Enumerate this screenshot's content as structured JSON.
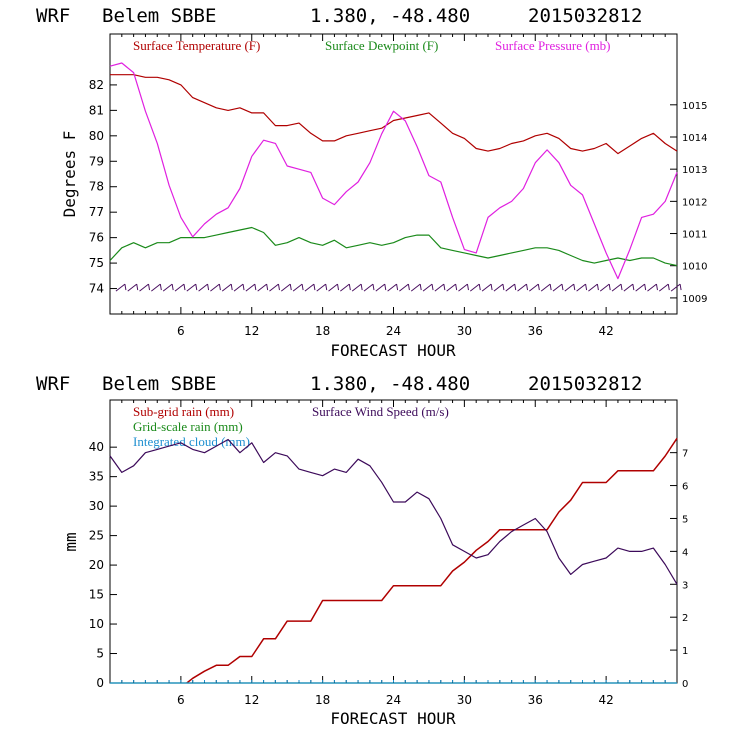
{
  "chart_data": [
    {
      "type": "line",
      "header": {
        "model": "WRF",
        "station": "Belem SBBE",
        "coords": "1.380, -48.480",
        "init": "2015032812"
      },
      "xlabel": "FORECAST HOUR",
      "ylabel": "Degrees F",
      "xlim": [
        0,
        48
      ],
      "ylim": [
        73,
        84
      ],
      "ylim_right": [
        1008.5,
        1017.2
      ],
      "x_ticks": [
        6,
        12,
        18,
        24,
        30,
        36,
        42
      ],
      "x_tick_labels": [
        "6",
        "12",
        "18",
        "24",
        "30",
        "36",
        "42"
      ],
      "y_ticks": [
        74,
        75,
        76,
        77,
        78,
        79,
        80,
        81,
        82
      ],
      "y_tick_labels": [
        "74",
        "75",
        "76",
        "77",
        "78",
        "79",
        "80",
        "81",
        "82"
      ],
      "y_right_ticks": [
        1009,
        1010,
        1011,
        1012,
        1013,
        1014,
        1015
      ],
      "y_right_tick_labels": [
        "1009",
        "1010",
        "1011",
        "1012",
        "1013",
        "1014",
        "1015"
      ],
      "series": [
        {
          "name": "Surface Temperature (F)",
          "color": "#b00000",
          "axis": "left",
          "x": [
            0,
            1,
            2,
            3,
            4,
            5,
            6,
            7,
            8,
            9,
            10,
            11,
            12,
            13,
            14,
            15,
            16,
            17,
            18,
            19,
            20,
            21,
            22,
            23,
            24,
            25,
            26,
            27,
            28,
            29,
            30,
            31,
            32,
            33,
            34,
            35,
            36,
            37,
            38,
            39,
            40,
            41,
            42,
            43,
            44,
            45,
            46,
            47,
            48
          ],
          "values": [
            82.4,
            82.4,
            82.4,
            82.3,
            82.3,
            82.2,
            82.0,
            81.5,
            81.3,
            81.1,
            81.0,
            81.1,
            80.9,
            80.9,
            80.4,
            80.4,
            80.5,
            80.1,
            79.8,
            79.8,
            80.0,
            80.1,
            80.2,
            80.3,
            80.6,
            80.7,
            80.8,
            80.9,
            80.5,
            80.1,
            79.9,
            79.5,
            79.4,
            79.5,
            79.7,
            79.8,
            80.0,
            80.1,
            79.9,
            79.5,
            79.4,
            79.5,
            79.7,
            79.3,
            79.6,
            79.9,
            80.1,
            79.7,
            79.4
          ]
        },
        {
          "name": "Surface Dewpoint (F)",
          "color": "#1a8a1a",
          "axis": "left",
          "x": [
            0,
            1,
            2,
            3,
            4,
            5,
            6,
            7,
            8,
            9,
            10,
            11,
            12,
            13,
            14,
            15,
            16,
            17,
            18,
            19,
            20,
            21,
            22,
            23,
            24,
            25,
            26,
            27,
            28,
            29,
            30,
            31,
            32,
            33,
            34,
            35,
            36,
            37,
            38,
            39,
            40,
            41,
            42,
            43,
            44,
            45,
            46,
            47,
            48
          ],
          "values": [
            75.1,
            75.6,
            75.8,
            75.6,
            75.8,
            75.8,
            76.0,
            76.0,
            76.0,
            76.1,
            76.2,
            76.3,
            76.4,
            76.2,
            75.7,
            75.8,
            76.0,
            75.8,
            75.7,
            75.9,
            75.6,
            75.7,
            75.8,
            75.7,
            75.8,
            76.0,
            76.1,
            76.1,
            75.6,
            75.5,
            75.4,
            75.3,
            75.2,
            75.3,
            75.4,
            75.5,
            75.6,
            75.6,
            75.5,
            75.3,
            75.1,
            75.0,
            75.1,
            75.2,
            75.1,
            75.2,
            75.2,
            75.0,
            74.9
          ]
        },
        {
          "name": "Surface Pressure (mb)",
          "color": "#e020e0",
          "axis": "right",
          "x": [
            0,
            1,
            2,
            3,
            4,
            5,
            6,
            7,
            8,
            9,
            10,
            11,
            12,
            13,
            14,
            15,
            16,
            17,
            18,
            19,
            20,
            21,
            22,
            23,
            24,
            25,
            26,
            27,
            28,
            29,
            30,
            31,
            32,
            33,
            34,
            35,
            36,
            37,
            38,
            39,
            40,
            41,
            42,
            43,
            44,
            45,
            46,
            47,
            48
          ],
          "values": [
            1016.2,
            1016.3,
            1016.0,
            1014.8,
            1013.8,
            1012.5,
            1011.5,
            1010.9,
            1011.3,
            1011.6,
            1011.8,
            1012.4,
            1013.4,
            1013.9,
            1013.8,
            1013.1,
            1013.0,
            1012.9,
            1012.1,
            1011.9,
            1012.3,
            1012.6,
            1013.2,
            1014.1,
            1014.8,
            1014.5,
            1013.7,
            1012.8,
            1012.6,
            1011.5,
            1010.5,
            1010.4,
            1011.5,
            1011.8,
            1012.0,
            1012.4,
            1013.2,
            1013.6,
            1013.2,
            1012.5,
            1012.2,
            1011.3,
            1010.4,
            1009.6,
            1010.5,
            1011.5,
            1011.6,
            1012.0,
            1012.9
          ]
        },
        {
          "name": "Wind Barbs",
          "color": "#4a1060",
          "axis": "left",
          "baseline": 73.9,
          "x": [
            0.5,
            1.5,
            2.5,
            3.5,
            4.5,
            5.5,
            6.5,
            7.5,
            8.5,
            9.5,
            10.5,
            11.5,
            12.5,
            13.5,
            14.5,
            15.5,
            16.5,
            17.5,
            18.5,
            19.5,
            20.5,
            21.5,
            22.5,
            23.5,
            24.5,
            25.5,
            26.5,
            27.5,
            28.5,
            29.5,
            30.5,
            31.5,
            32.5,
            33.5,
            34.5,
            35.5,
            36.5,
            37.5,
            38.5,
            39.5,
            40.5,
            41.5,
            42.5,
            43.5,
            44.5,
            45.5,
            46.5,
            47.5
          ]
        }
      ]
    },
    {
      "type": "line",
      "header": {
        "model": "WRF",
        "station": "Belem SBBE",
        "coords": "1.380, -48.480",
        "init": "2015032812"
      },
      "xlabel": "FORECAST HOUR",
      "ylabel": "mm",
      "xlim": [
        0,
        48
      ],
      "ylim": [
        0,
        48
      ],
      "ylim_right": [
        0,
        8.6
      ],
      "x_ticks": [
        6,
        12,
        18,
        24,
        30,
        36,
        42
      ],
      "x_tick_labels": [
        "6",
        "12",
        "18",
        "24",
        "30",
        "36",
        "42"
      ],
      "y_ticks": [
        0,
        5,
        10,
        15,
        20,
        25,
        30,
        35,
        40
      ],
      "y_tick_labels": [
        "0",
        "5",
        "10",
        "15",
        "20",
        "25",
        "30",
        "35",
        "40"
      ],
      "y_right_ticks": [
        0,
        1,
        2,
        3,
        4,
        5,
        6,
        7
      ],
      "y_right_tick_labels": [
        "0",
        "1",
        "2",
        "3",
        "4",
        "5",
        "6",
        "7"
      ],
      "series": [
        {
          "name": "Sub-grid rain (mm)",
          "color": "#b00000",
          "axis": "left",
          "x": [
            6.5,
            7,
            8,
            9,
            10,
            11,
            12,
            13,
            14,
            15,
            16,
            17,
            18,
            19,
            20,
            21,
            22,
            23,
            24,
            25,
            26,
            27,
            28,
            29,
            30,
            31,
            32,
            33,
            34,
            35,
            36,
            37,
            38,
            39,
            40,
            41,
            42,
            43,
            44,
            45,
            46,
            47,
            48
          ],
          "values": [
            0,
            0.8,
            2,
            3,
            3,
            4.5,
            4.5,
            7.5,
            7.5,
            10.5,
            10.5,
            10.5,
            14,
            14,
            14,
            14,
            14,
            14,
            16.5,
            16.5,
            16.5,
            16.5,
            16.5,
            19,
            20.5,
            22.5,
            24,
            26,
            26,
            26,
            26,
            26,
            29,
            31,
            34,
            34,
            34,
            36,
            36,
            36,
            36,
            38.5,
            41.5
          ]
        },
        {
          "name": "Grid-scale rain (mm)",
          "color": "#1a8a1a",
          "axis": "left",
          "x": [
            0,
            48
          ],
          "values": [
            0,
            0
          ]
        },
        {
          "name": "Integrated cloud (mm)",
          "color": "#1e8fd0",
          "axis": "left",
          "x": [
            0,
            48
          ],
          "values": [
            0,
            0
          ]
        },
        {
          "name": "Surface Wind Speed (m/s)",
          "color": "#3c0a5a",
          "axis": "right",
          "x": [
            0,
            1,
            2,
            3,
            4,
            5,
            6,
            7,
            8,
            9,
            10,
            11,
            12,
            13,
            14,
            15,
            16,
            17,
            18,
            19,
            20,
            21,
            22,
            23,
            24,
            25,
            26,
            27,
            28,
            29,
            30,
            31,
            32,
            33,
            34,
            35,
            36,
            37,
            38,
            39,
            40,
            41,
            42,
            43,
            44,
            45,
            46,
            47,
            48
          ],
          "values": [
            6.9,
            6.4,
            6.6,
            7.0,
            7.1,
            7.2,
            7.3,
            7.1,
            7.0,
            7.2,
            7.4,
            7.0,
            7.3,
            6.7,
            7.0,
            6.9,
            6.5,
            6.4,
            6.3,
            6.5,
            6.4,
            6.8,
            6.6,
            6.1,
            5.5,
            5.5,
            5.8,
            5.6,
            5.0,
            4.2,
            4.0,
            3.8,
            3.9,
            4.3,
            4.6,
            4.8,
            5.0,
            4.6,
            3.8,
            3.3,
            3.6,
            3.7,
            3.8,
            4.1,
            4.0,
            4.0,
            4.1,
            3.6,
            3.0
          ]
        }
      ]
    }
  ]
}
